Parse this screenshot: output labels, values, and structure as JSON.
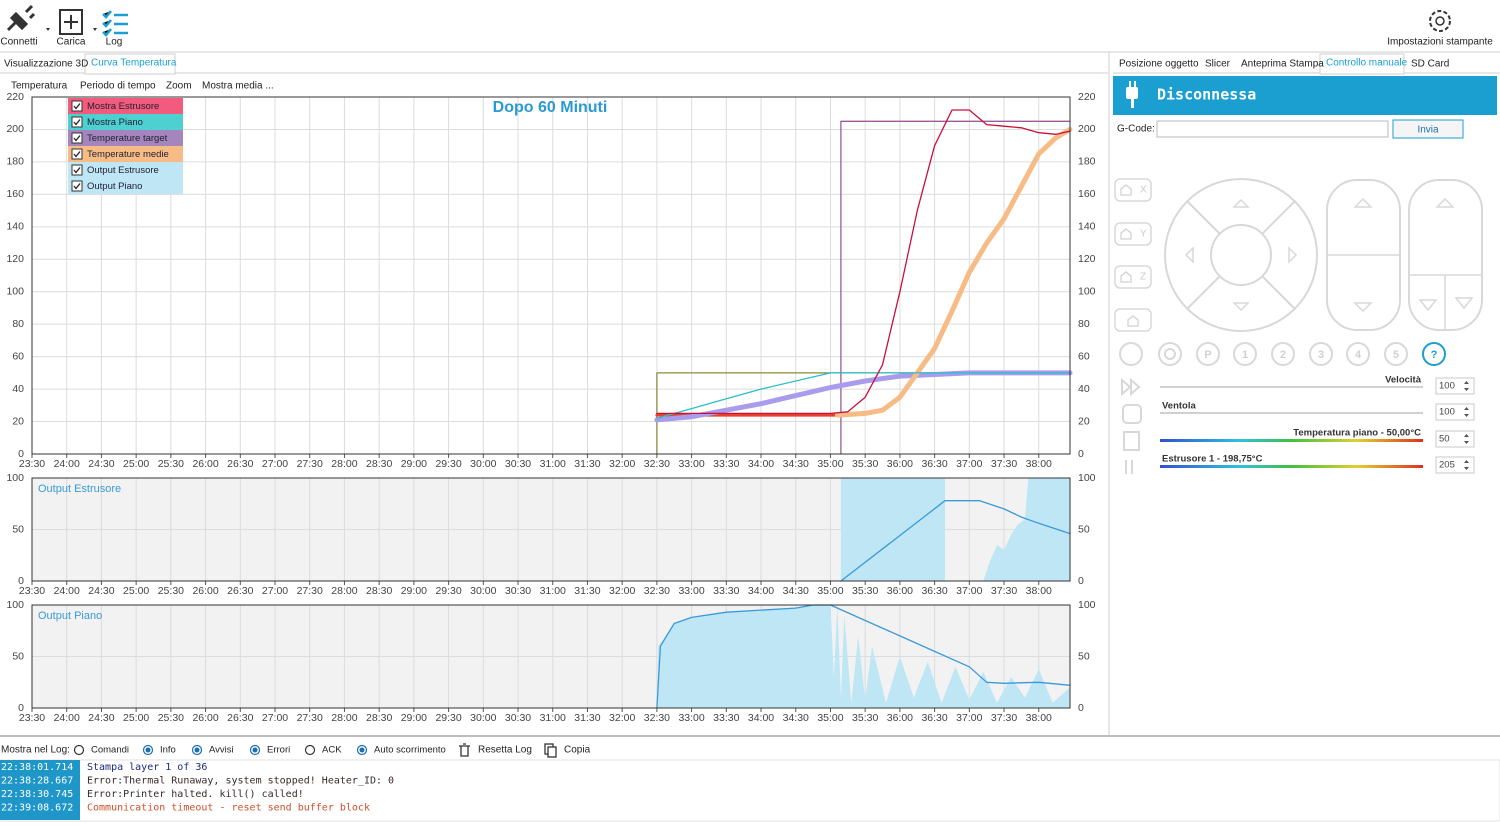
{
  "toolbar": {
    "buttons": [
      "Connetti",
      "Carica",
      "Log"
    ],
    "settings": "Impostazioni stampante"
  },
  "left_tabs": [
    "Visualizzazione 3D",
    "Curva Temperatura"
  ],
  "chart_menu": [
    "Temperatura",
    "Periodo di tempo",
    "Zoom",
    "Mostra media ..."
  ],
  "time_axis": {
    "xlim": [
      23.5,
      38.45
    ],
    "xticks": [
      {
        "value": 23.5,
        "label": "23:30"
      },
      {
        "value": 24,
        "label": "24:00"
      },
      {
        "value": 24.5,
        "label": "24:30"
      },
      {
        "value": 25,
        "label": "25:00"
      },
      {
        "value": 25.5,
        "label": "25:30"
      },
      {
        "value": 26,
        "label": "26:00"
      },
      {
        "value": 26.5,
        "label": "26:30"
      },
      {
        "value": 27,
        "label": "27:00"
      },
      {
        "value": 27.5,
        "label": "27:30"
      },
      {
        "value": 28,
        "label": "28:00"
      },
      {
        "value": 28.5,
        "label": "28:30"
      },
      {
        "value": 29,
        "label": "29:00"
      },
      {
        "value": 29.5,
        "label": "29:30"
      },
      {
        "value": 30,
        "label": "30:00"
      },
      {
        "value": 30.5,
        "label": "30:30"
      },
      {
        "value": 31,
        "label": "31:00"
      },
      {
        "value": 31.5,
        "label": "31:30"
      },
      {
        "value": 32,
        "label": "32:00"
      },
      {
        "value": 32.5,
        "label": "32:30"
      },
      {
        "value": 33,
        "label": "33:00"
      },
      {
        "value": 33.5,
        "label": "33:30"
      },
      {
        "value": 34,
        "label": "34:00"
      },
      {
        "value": 34.5,
        "label": "34:30"
      },
      {
        "value": 35,
        "label": "35:00"
      },
      {
        "value": 35.5,
        "label": "35:30"
      },
      {
        "value": 36,
        "label": "36:00"
      },
      {
        "value": 36.5,
        "label": "36:30"
      },
      {
        "value": 37,
        "label": "37:00"
      },
      {
        "value": 37.5,
        "label": "37:30"
      },
      {
        "value": 38,
        "label": "38:00"
      }
    ]
  },
  "charts": [
    {
      "type": "line",
      "title": "Dopo 60 Minuti",
      "ylim": [
        0,
        220
      ],
      "yticks": [
        0,
        20,
        40,
        60,
        80,
        100,
        120,
        140,
        160,
        180,
        200,
        220
      ],
      "grid": true,
      "legend": [
        {
          "label": "Mostra Estrusore",
          "color": "#f25a7e"
        },
        {
          "label": "Mostra Piano",
          "color": "#4ed0d0"
        },
        {
          "label": "Temperature target",
          "color": "#a585bd"
        },
        {
          "label": "Temperature medie",
          "color": "#f7bb85"
        },
        {
          "label": "Output Estrusore",
          "color": "#bfe6f4"
        },
        {
          "label": "Output Piano",
          "color": "#bfe6f4"
        }
      ],
      "series": [
        {
          "color": "#8b8b3a",
          "x": [
            32.5,
            32.5,
            38.45
          ],
          "values": [
            0,
            50,
            50
          ]
        },
        {
          "color": "#9b5b9b",
          "x": [
            35.15,
            35.15,
            38.45
          ],
          "values": [
            0,
            205,
            205
          ]
        },
        {
          "color": "#e8402a",
          "width": 3,
          "x": [
            32.5,
            35.1
          ],
          "values": [
            24,
            24
          ]
        },
        {
          "color": "#a99cec",
          "width": 5,
          "x": [
            32.5,
            33,
            33.5,
            34,
            34.5,
            35,
            35.5,
            36,
            36.5,
            37,
            38.45
          ],
          "values": [
            21,
            23,
            27,
            31,
            36,
            41,
            45,
            48,
            49,
            50,
            50
          ]
        },
        {
          "color": "#f7bb85",
          "width": 5,
          "x": [
            35.1,
            35.5,
            35.75,
            36,
            36.25,
            36.5,
            36.75,
            37,
            37.25,
            37.5,
            37.75,
            38,
            38.25,
            38.45
          ],
          "values": [
            24,
            25,
            27,
            35,
            50,
            65,
            88,
            112,
            130,
            145,
            165,
            185,
            195,
            200
          ]
        },
        {
          "color": "#28c0c8",
          "x": [
            32.5,
            33,
            33.5,
            34,
            34.5,
            35,
            35.25,
            38.45
          ],
          "values": [
            22,
            28,
            34,
            40,
            45,
            50,
            50,
            50
          ]
        },
        {
          "color": "#c8103c",
          "x": [
            32.5,
            33,
            33.5,
            34,
            34.5,
            35,
            35.25,
            35.5,
            35.75,
            36,
            36.25,
            36.5,
            36.75,
            37,
            37.25,
            37.5,
            37.75,
            38,
            38.25,
            38.45
          ],
          "values": [
            25,
            25,
            25,
            25,
            25,
            25,
            26,
            35,
            55,
            100,
            150,
            190,
            212,
            212,
            203,
            202,
            201,
            198,
            197,
            199
          ]
        }
      ]
    },
    {
      "type": "line",
      "title": "Output Estrusore",
      "ylim": [
        0,
        100
      ],
      "yticks": [
        0,
        50,
        100
      ],
      "grid": true,
      "series": [
        {
          "color": "#bfe6f4",
          "area": true,
          "x": [
            35.15,
            35.15,
            36.65,
            36.65
          ],
          "values": [
            0,
            100,
            100,
            0
          ]
        },
        {
          "color": "#bfe6f4",
          "area": true,
          "x": [
            37.2,
            37.3,
            37.4,
            37.5,
            37.6,
            37.7,
            37.8,
            37.85,
            37.9,
            38.45
          ],
          "values": [
            0,
            20,
            35,
            30,
            45,
            55,
            60,
            100,
            100,
            100
          ]
        },
        {
          "color": "#3a9ad9",
          "x": [
            35.15,
            36.65,
            37.15,
            37.5,
            37.75,
            38,
            38.45
          ],
          "values": [
            0,
            78,
            78,
            70,
            62,
            56,
            46
          ]
        }
      ]
    },
    {
      "type": "line",
      "title": "Output Piano",
      "ylim": [
        0,
        100
      ],
      "yticks": [
        0,
        50,
        100
      ],
      "grid": true,
      "series": [
        {
          "color": "#bfe6f4",
          "area": true,
          "x": [
            32.5,
            32.52,
            32.75,
            33,
            33.5,
            34,
            34.5,
            34.75,
            35,
            35.05,
            35.1,
            35.15,
            35.2,
            35.3,
            35.4,
            35.5,
            35.6,
            35.8,
            36,
            36.2,
            36.4,
            36.6,
            36.8,
            37,
            37.2,
            37.4,
            37.6,
            37.8,
            38,
            38.2,
            38.45
          ],
          "values": [
            0,
            60,
            82,
            88,
            93,
            95,
            97,
            100,
            100,
            30,
            100,
            10,
            90,
            5,
            70,
            8,
            60,
            5,
            50,
            10,
            45,
            5,
            40,
            8,
            35,
            5,
            30,
            10,
            38,
            5,
            20
          ]
        },
        {
          "color": "#3a9ad9",
          "x": [
            32.5,
            32.55,
            32.75,
            33,
            33.5,
            34,
            34.5,
            34.75,
            35,
            35.5,
            36,
            36.5,
            37,
            37.25,
            37.5,
            38,
            38.45
          ],
          "values": [
            0,
            60,
            82,
            88,
            93,
            95,
            97,
            100,
            100,
            85,
            70,
            55,
            40,
            25,
            24,
            25,
            22
          ]
        }
      ]
    }
  ],
  "right_tabs": [
    "Posizione oggetto",
    "Slicer",
    "Anteprima Stampa",
    "Controllo manuale",
    "SD Card"
  ],
  "printer_status": "Disconnessa",
  "gcode_label": "G-Code:",
  "send_button": "Invia",
  "home_buttons": [
    "X",
    "Y",
    "Z"
  ],
  "macro_buttons": [
    "P",
    "1",
    "2",
    "3",
    "4",
    "5",
    "?"
  ],
  "sliders": [
    {
      "label": "Velocità",
      "value": 100
    },
    {
      "label": "Ventola",
      "value": 100
    },
    {
      "label": "Temperatura piano - 50,00°C",
      "value": 50
    },
    {
      "label": "Estrusore 1 - 198,75°C",
      "value": 205
    }
  ],
  "log_options": {
    "label": "Mostra nel Log:",
    "options": [
      {
        "label": "Comandi",
        "checked": false
      },
      {
        "label": "Info",
        "checked": true
      },
      {
        "label": "Avvisi",
        "checked": true
      },
      {
        "label": "Errori",
        "checked": true
      },
      {
        "label": "ACK",
        "checked": false
      },
      {
        "label": "Auto scorrimento",
        "checked": true
      }
    ],
    "reset": "Resetta Log",
    "copy": "Copia"
  },
  "log": [
    {
      "time": "22:38:01.714",
      "message": "Stampa layer 1 of 36",
      "color": "#1a2a80"
    },
    {
      "time": "22:38:28.667",
      "message": "Error:Thermal Runaway, system stopped! Heater_ID: 0",
      "color": "#3a2a2a"
    },
    {
      "time": "22:38:30.745",
      "message": "Error:Printer halted. kill() called!",
      "color": "#3a2a2a"
    },
    {
      "time": "22:39:08.672",
      "message": "Communication timeout - reset send buffer block",
      "color": "#d0502a"
    }
  ]
}
